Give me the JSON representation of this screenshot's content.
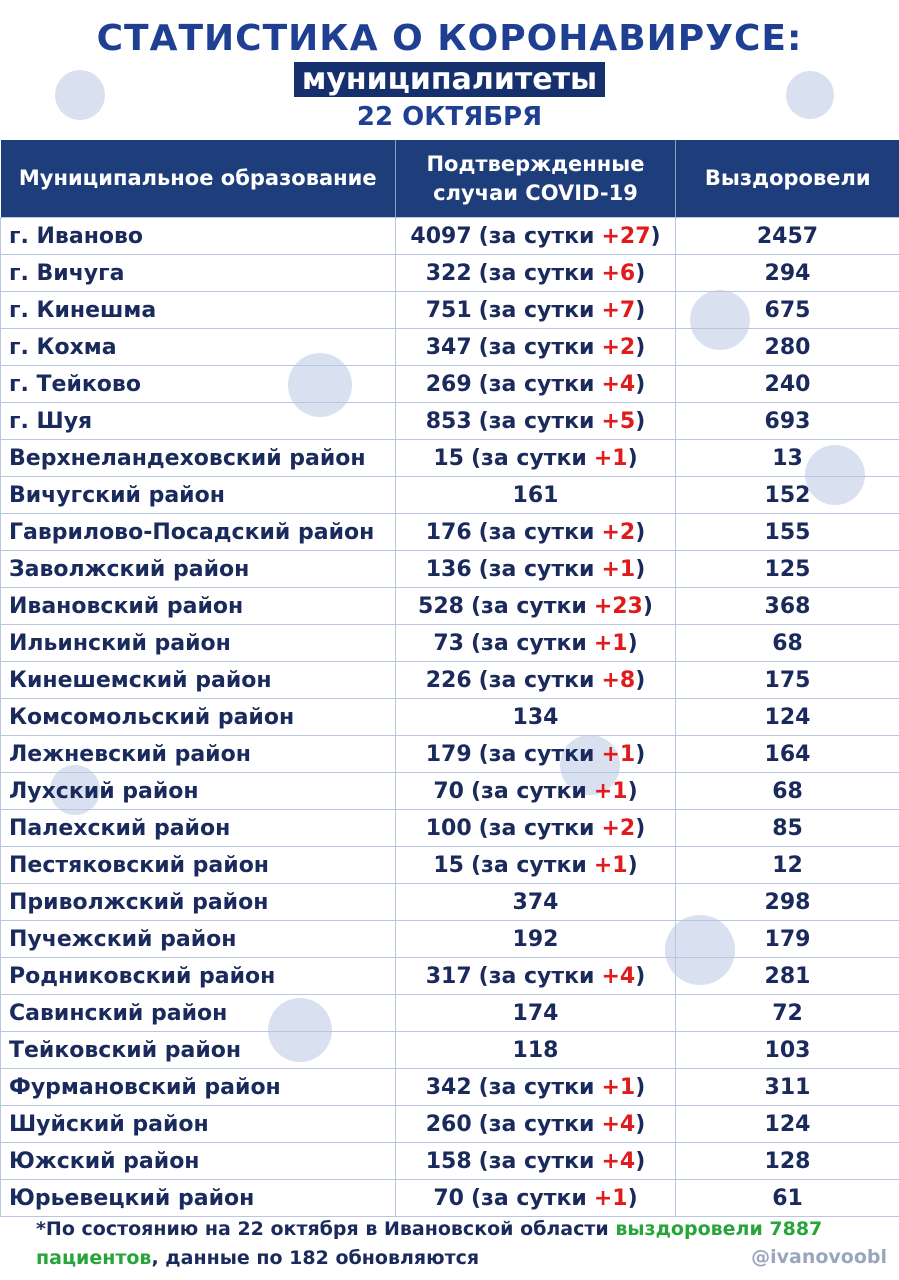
{
  "header": {
    "title": "СТАТИСТИКА О КОРОНАВИРУСЕ:",
    "subtitle": "муниципалитеты",
    "date": "22 ОКТЯБРЯ"
  },
  "table": {
    "columns": [
      "Муниципальное образование",
      "Подтвержденные случаи COVID-19",
      "Выздоровели"
    ],
    "daily_prefix": "(за сутки",
    "daily_close": ")",
    "rows": [
      {
        "name": "г. Иваново",
        "confirmed": "4097",
        "increase": "+27",
        "recovered": "2457"
      },
      {
        "name": "г. Вичуга",
        "confirmed": "322",
        "increase": "+6",
        "recovered": "294"
      },
      {
        "name": "г. Кинешма",
        "confirmed": "751",
        "increase": "+7",
        "recovered": "675"
      },
      {
        "name": "г. Кохма",
        "confirmed": "347",
        "increase": "+2",
        "recovered": "280"
      },
      {
        "name": "г. Тейково",
        "confirmed": "269",
        "increase": "+4",
        "recovered": "240"
      },
      {
        "name": "г. Шуя",
        "confirmed": "853",
        "increase": "+5",
        "recovered": "693"
      },
      {
        "name": "Верхнеландеховский район",
        "confirmed": "15",
        "increase": "+1",
        "recovered": "13"
      },
      {
        "name": "Вичугский район",
        "confirmed": "161",
        "recovered": "152"
      },
      {
        "name": "Гаврилово-Посадский район",
        "confirmed": "176",
        "increase": "+2",
        "recovered": "155"
      },
      {
        "name": "Заволжский район",
        "confirmed": "136",
        "increase": "+1",
        "recovered": "125"
      },
      {
        "name": "Ивановский район",
        "confirmed": "528",
        "increase": "+23",
        "recovered": "368"
      },
      {
        "name": "Ильинский район",
        "confirmed": "73",
        "increase": "+1",
        "recovered": "68"
      },
      {
        "name": "Кинешемский район",
        "confirmed": "226",
        "increase": "+8",
        "recovered": "175"
      },
      {
        "name": "Комсомольский район",
        "confirmed": "134",
        "recovered": "124"
      },
      {
        "name": "Лежневский район",
        "confirmed": "179",
        "increase": "+1",
        "recovered": "164"
      },
      {
        "name": "Лухский район",
        "confirmed": "70",
        "increase": "+1",
        "recovered": "68"
      },
      {
        "name": "Палехский район",
        "confirmed": "100",
        "increase": "+2",
        "recovered": "85"
      },
      {
        "name": "Пестяковский район",
        "confirmed": "15",
        "increase": "+1",
        "recovered": "12"
      },
      {
        "name": "Приволжский район",
        "confirmed": "374",
        "recovered": "298"
      },
      {
        "name": "Пучежский район",
        "confirmed": "192",
        "recovered": "179"
      },
      {
        "name": "Родниковский район",
        "confirmed": "317",
        "increase": "+4",
        "recovered": "281"
      },
      {
        "name": "Савинский район",
        "confirmed": "174",
        "recovered": "72"
      },
      {
        "name": "Тейковский район",
        "confirmed": "118",
        "recovered": "103"
      },
      {
        "name": "Фурмановский район",
        "confirmed": "342",
        "increase": "+1",
        "recovered": "311"
      },
      {
        "name": "Шуйский район",
        "confirmed": "260",
        "increase": "+4",
        "recovered": "124"
      },
      {
        "name": "Южский район",
        "confirmed": "158",
        "increase": "+4",
        "recovered": "128"
      },
      {
        "name": "Юрьевецкий район",
        "confirmed": "70",
        "increase": "+1",
        "recovered": "61"
      }
    ]
  },
  "footer": {
    "note_start": "*По состоянию на 22 октября в Ивановской области",
    "note_green": "выздоровели 7887 пациентов",
    "note_end": ", данные по 182 обновляются",
    "handle": "@ivanovoobl"
  }
}
